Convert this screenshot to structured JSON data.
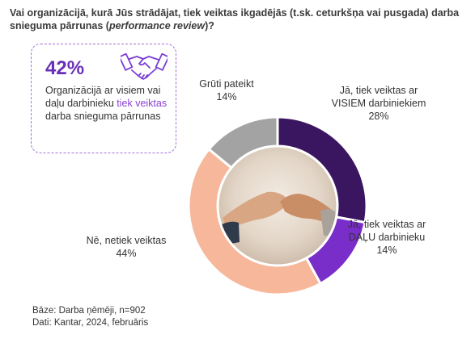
{
  "question": {
    "main": "Vai organizācijā, kurā Jūs strādājat, tiek veiktas ikgadējās (t.sk. ceturkšņa vai pusgada) darba snieguma pārrunas (",
    "italic": "performance review",
    "end": ")?"
  },
  "callout": {
    "percent": "42%",
    "text_a": "Organizācijā ar visiem vai daļu darbinieku ",
    "text_hl": "tiek veiktas",
    "text_b": " darba snieguma pārrunas",
    "icon": "handshake-icon"
  },
  "chart_data": {
    "type": "pie",
    "donut": true,
    "slices": [
      {
        "label_1": "Jā, tiek veiktas ar",
        "label_2": "VISIEM darbiniekiem",
        "value": 28,
        "value_label": "28%",
        "color": "#3a1660"
      },
      {
        "label_1": "Jā, tiek veiktas ar",
        "label_2": "DAĻU darbinieku",
        "value": 14,
        "value_label": "14%",
        "color": "#7a2ec9"
      },
      {
        "label_1": "Nē, netiek veiktas",
        "label_2": "",
        "value": 44,
        "value_label": "44%",
        "color": "#f7b79a"
      },
      {
        "label_1": "Grūti pateikt",
        "label_2": "",
        "value": 14,
        "value_label": "14%",
        "color": "#a3a3a3"
      }
    ]
  },
  "footer": {
    "base": "Bāze: Darba ņēmēji, n=902",
    "source": "Dati: Kantar, 2024, februāris"
  }
}
